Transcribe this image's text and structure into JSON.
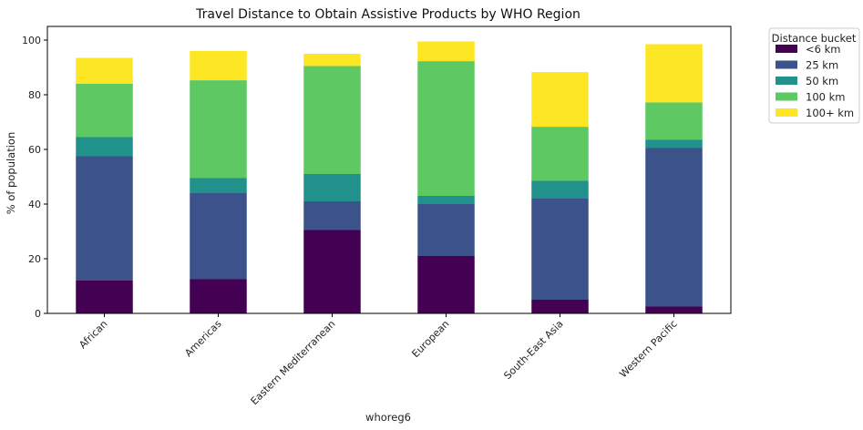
{
  "chart_data": {
    "type": "bar",
    "stacked": true,
    "title": "Travel Distance to Obtain Assistive Products by WHO Region",
    "xlabel": "whoreg6",
    "ylabel": "% of population",
    "ylim": [
      0,
      105
    ],
    "yticks": [
      "0",
      "20",
      "40",
      "60",
      "80",
      "100"
    ],
    "categories": [
      "African",
      "Americas",
      "Eastern Mediterranean",
      "European",
      "South-East Asia",
      "Western Pacific"
    ],
    "series": [
      {
        "name": "<6 km",
        "color": "#440154",
        "values": [
          12.0,
          12.5,
          30.5,
          21.0,
          5.0,
          2.5
        ]
      },
      {
        "name": "25 km",
        "color": "#3b528b",
        "values": [
          45.5,
          31.5,
          10.5,
          19.0,
          37.0,
          58.0
        ]
      },
      {
        "name": "50 km",
        "color": "#21918c",
        "values": [
          7.0,
          5.5,
          10.0,
          3.0,
          6.5,
          3.0
        ]
      },
      {
        "name": "100 km",
        "color": "#5ec962",
        "values": [
          19.5,
          35.8,
          39.5,
          49.3,
          19.8,
          13.7
        ]
      },
      {
        "name": "100+ km",
        "color": "#fde725",
        "values": [
          9.5,
          10.7,
          4.5,
          7.2,
          20.0,
          21.3
        ]
      }
    ],
    "grid": false,
    "legend": {
      "title": "Distance bucket",
      "placement": "outside-top-right"
    }
  }
}
